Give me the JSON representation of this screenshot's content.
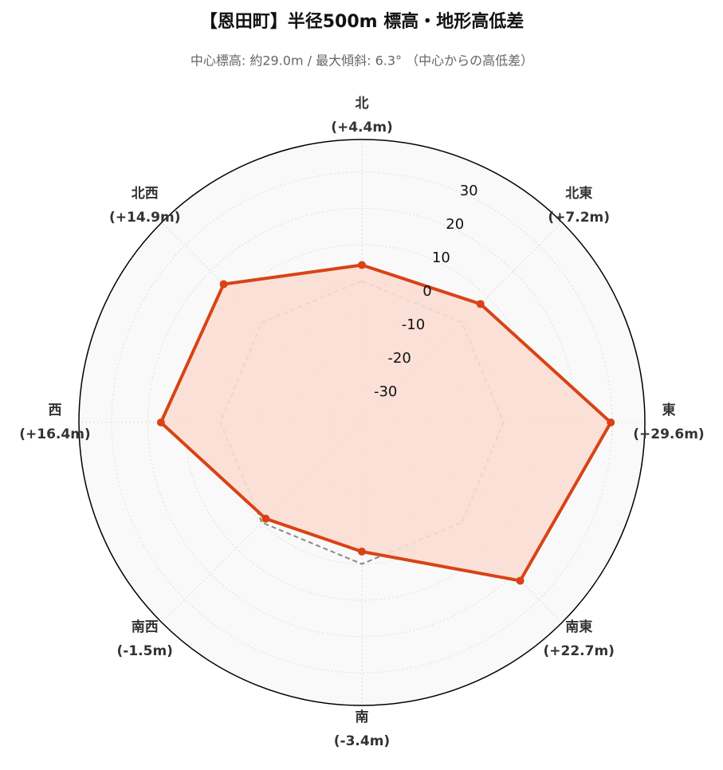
{
  "chart_data": {
    "type": "radar",
    "title": "【恩田町】半径500m 標高・地形高低差",
    "subtitle": "中心標高: 約29.0m / 最大傾斜: 6.3° （中心からの高低差）",
    "categories": [
      "北",
      "北東",
      "東",
      "南東",
      "南",
      "南西",
      "西",
      "北西"
    ],
    "values": [
      4.4,
      7.2,
      29.6,
      22.7,
      -3.4,
      -1.5,
      16.4,
      14.9
    ],
    "value_labels": [
      "(+4.4m)",
      "(+7.2m)",
      "(+29.6m)",
      "(+22.7m)",
      "(-3.4m)",
      "(-1.5m)",
      "(+16.4m)",
      "(+14.9m)"
    ],
    "color": "#d84315",
    "fill_color": "#fbddd4",
    "baseline": 0,
    "baseline_color": "#888888",
    "ylim": [
      -39,
      39
    ],
    "yticks": [
      -30,
      -20,
      -10,
      0,
      10,
      20,
      30
    ],
    "grid": true
  }
}
